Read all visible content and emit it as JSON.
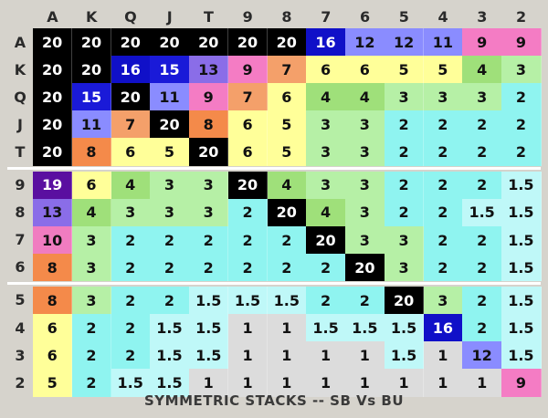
{
  "columns": [
    "A",
    "K",
    "Q",
    "J",
    "T",
    "9",
    "8",
    "7",
    "6",
    "5",
    "4",
    "3",
    "2"
  ],
  "rows": [
    "A",
    "K",
    "Q",
    "J",
    "T",
    "9",
    "8",
    "7",
    "6",
    "5",
    "4",
    "3",
    "2"
  ],
  "values": [
    [
      "20",
      "20",
      "20",
      "20",
      "20",
      "20",
      "20",
      "16",
      "12",
      "12",
      "11",
      "9",
      "9"
    ],
    [
      "20",
      "20",
      "16",
      "15",
      "13",
      "9",
      "7",
      "6",
      "6",
      "5",
      "5",
      "4",
      "3"
    ],
    [
      "20",
      "15",
      "20",
      "11",
      "9",
      "7",
      "6",
      "4",
      "4",
      "3",
      "3",
      "3",
      "2"
    ],
    [
      "20",
      "11",
      "7",
      "20",
      "8",
      "6",
      "5",
      "3",
      "3",
      "2",
      "2",
      "2",
      "2"
    ],
    [
      "20",
      "8",
      "6",
      "5",
      "20",
      "6",
      "5",
      "3",
      "3",
      "2",
      "2",
      "2",
      "2"
    ],
    [
      "19",
      "6",
      "4",
      "3",
      "3",
      "20",
      "4",
      "3",
      "3",
      "2",
      "2",
      "2",
      "1.5"
    ],
    [
      "13",
      "4",
      "3",
      "3",
      "3",
      "2",
      "20",
      "4",
      "3",
      "2",
      "2",
      "1.5",
      "1.5"
    ],
    [
      "10",
      "3",
      "2",
      "2",
      "2",
      "2",
      "2",
      "20",
      "3",
      "3",
      "2",
      "2",
      "1.5"
    ],
    [
      "8",
      "3",
      "2",
      "2",
      "2",
      "2",
      "2",
      "2",
      "20",
      "3",
      "2",
      "2",
      "1.5"
    ],
    [
      "8",
      "3",
      "2",
      "2",
      "1.5",
      "1.5",
      "1.5",
      "2",
      "2",
      "20",
      "3",
      "2",
      "1.5"
    ],
    [
      "6",
      "2",
      "2",
      "1.5",
      "1.5",
      "1",
      "1",
      "1.5",
      "1.5",
      "1.5",
      "16",
      "2",
      "1.5"
    ],
    [
      "6",
      "2",
      "2",
      "1.5",
      "1.5",
      "1",
      "1",
      "1",
      "1",
      "1.5",
      "1",
      "12",
      "1.5"
    ],
    [
      "5",
      "2",
      "1.5",
      "1.5",
      "1",
      "1",
      "1",
      "1",
      "1",
      "1",
      "1",
      "1",
      "9"
    ]
  ],
  "colors": {
    "20": {
      "bg": "#000000",
      "fg": "#ffffff"
    },
    "19": {
      "bg": "#5a0fa0",
      "fg": "#ffffff"
    },
    "16": {
      "bg": "#1010c8",
      "fg": "#ffffff"
    },
    "15": {
      "bg": "#1a1ad8",
      "fg": "#ffffff"
    },
    "13": {
      "bg": "#8a6de8",
      "fg": "#111111"
    },
    "12": {
      "bg": "#8a8cff",
      "fg": "#111111"
    },
    "11": {
      "bg": "#8a8cff",
      "fg": "#111111"
    },
    "10": {
      "bg": "#f07cc0",
      "fg": "#111111"
    },
    "9": {
      "bg": "#f47cc4",
      "fg": "#111111"
    },
    "8": {
      "bg": "#f48a4a",
      "fg": "#111111"
    },
    "7": {
      "bg": "#f4a06a",
      "fg": "#111111"
    },
    "6": {
      "bg": "#ffff99",
      "fg": "#111111"
    },
    "5": {
      "bg": "#ffff99",
      "fg": "#111111"
    },
    "4": {
      "bg": "#9fe07a",
      "fg": "#111111"
    },
    "3": {
      "bg": "#b6f0a6",
      "fg": "#111111"
    },
    "2": {
      "bg": "#8ff4f0",
      "fg": "#111111"
    },
    "1.5": {
      "bg": "#bff8f8",
      "fg": "#111111"
    },
    "1": {
      "bg": "#dcdcdc",
      "fg": "#111111"
    }
  },
  "caption": "SYMMETRIC STACKS   --  SB Vs BU"
}
